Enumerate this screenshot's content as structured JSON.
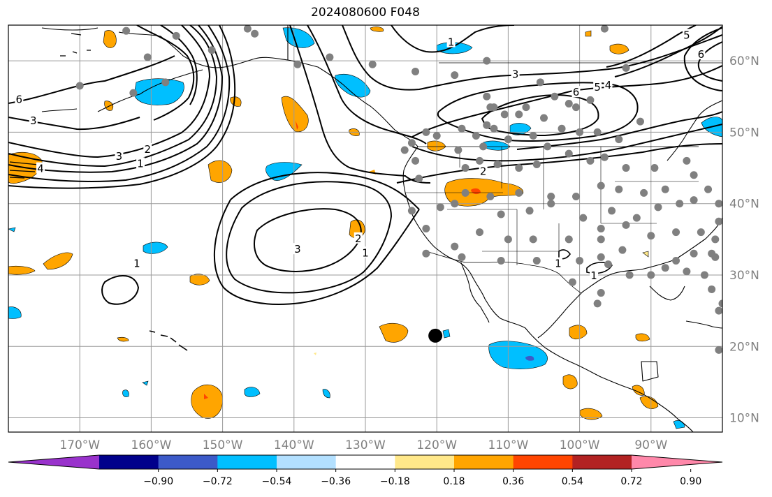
{
  "title": "2024080600 F048",
  "map": {
    "lon_range": [
      -180,
      -80
    ],
    "lat_range": [
      8,
      65
    ],
    "gridlines": true,
    "lon_ticks": [
      {
        "value": -170,
        "label": "170°W"
      },
      {
        "value": -160,
        "label": "160°W"
      },
      {
        "value": -150,
        "label": "150°W"
      },
      {
        "value": -140,
        "label": "140°W"
      },
      {
        "value": -130,
        "label": "130°W"
      },
      {
        "value": -120,
        "label": "120°W"
      },
      {
        "value": -110,
        "label": "110°W"
      },
      {
        "value": -100,
        "label": "100°W"
      },
      {
        "value": -90,
        "label": "90°W"
      }
    ],
    "lat_ticks": [
      {
        "value": 10,
        "label": "10°N"
      },
      {
        "value": 20,
        "label": "20°N"
      },
      {
        "value": 30,
        "label": "30°N"
      },
      {
        "value": 40,
        "label": "40°N"
      },
      {
        "value": 50,
        "label": "50°N"
      },
      {
        "value": 60,
        "label": "60°N"
      }
    ],
    "contour_labels": [
      {
        "text": "1",
        "lon": -162,
        "lat": 31.5
      },
      {
        "text": "3",
        "lon": -139.5,
        "lat": 33.5
      },
      {
        "text": "2",
        "lon": -131,
        "lat": 35
      },
      {
        "text": "1",
        "lon": -130,
        "lat": 33
      },
      {
        "text": "4",
        "lon": -175.5,
        "lat": 44.8
      },
      {
        "text": "3",
        "lon": -164.5,
        "lat": 46.5
      },
      {
        "text": "2",
        "lon": -160.5,
        "lat": 47.5
      },
      {
        "text": "1",
        "lon": -161.5,
        "lat": 45.5
      },
      {
        "text": "6",
        "lon": -178.5,
        "lat": 54.5
      },
      {
        "text": "3",
        "lon": -176.5,
        "lat": 51.5
      },
      {
        "text": "1",
        "lon": -118,
        "lat": 62.5
      },
      {
        "text": "3",
        "lon": -109,
        "lat": 58
      },
      {
        "text": "5",
        "lon": -97.5,
        "lat": 56.2
      },
      {
        "text": "6",
        "lon": -100.5,
        "lat": 55.5
      },
      {
        "text": "4",
        "lon": -96,
        "lat": 56.5
      },
      {
        "text": "2",
        "lon": -113.5,
        "lat": 44.4
      },
      {
        "text": "1",
        "lon": -103,
        "lat": 31.5
      },
      {
        "text": "1",
        "lon": -98,
        "lat": 29.8
      },
      {
        "text": "5",
        "lon": -85,
        "lat": 63.5
      },
      {
        "text": "6",
        "lon": -83,
        "lat": 60.8
      }
    ],
    "stations": [
      [
        -163.5,
        64.2
      ],
      [
        -156.5,
        63.5
      ],
      [
        -146.5,
        64.5
      ],
      [
        -145.5,
        63.8
      ],
      [
        -160.5,
        60.5
      ],
      [
        -151.5,
        61.5
      ],
      [
        -158,
        57
      ],
      [
        -162.5,
        55.5
      ],
      [
        -170,
        56.5
      ],
      [
        -139.5,
        59.5
      ],
      [
        -135,
        60.5
      ],
      [
        -129,
        59.5
      ],
      [
        -123,
        58.5
      ],
      [
        -117.5,
        58
      ],
      [
        -113,
        60
      ],
      [
        -105.5,
        57
      ],
      [
        -103.5,
        55
      ],
      [
        -98.5,
        54.5
      ],
      [
        -96.5,
        64.5
      ],
      [
        -93.5,
        59
      ],
      [
        -113,
        55
      ],
      [
        -110.5,
        52.5
      ],
      [
        -112.5,
        53.5
      ],
      [
        -112,
        53.5
      ],
      [
        -108.5,
        52.5
      ],
      [
        -107.5,
        53.5
      ],
      [
        -105,
        52
      ],
      [
        -101.5,
        54
      ],
      [
        -100.5,
        53.5
      ],
      [
        -102.5,
        50.5
      ],
      [
        -100,
        50
      ],
      [
        -97.5,
        50
      ],
      [
        -94.5,
        49
      ],
      [
        -91.5,
        51.5
      ],
      [
        -104.5,
        48
      ],
      [
        -106.5,
        49.5
      ],
      [
        -110,
        49
      ],
      [
        -112,
        50.5
      ],
      [
        -114.5,
        49.5
      ],
      [
        -113,
        51
      ],
      [
        -116.5,
        50.5
      ],
      [
        -120,
        49.5
      ],
      [
        -121.5,
        50
      ],
      [
        -123.5,
        48.5
      ],
      [
        -124.5,
        47.5
      ],
      [
        -123,
        46
      ],
      [
        -122.5,
        43.5
      ],
      [
        -117,
        47.5
      ],
      [
        -113.5,
        48
      ],
      [
        -116,
        45
      ],
      [
        -114,
        46
      ],
      [
        -111.5,
        45.5
      ],
      [
        -108.5,
        45
      ],
      [
        -106,
        45.5
      ],
      [
        -101.5,
        47
      ],
      [
        -98.5,
        46
      ],
      [
        -96.5,
        46.5
      ],
      [
        -93.5,
        45
      ],
      [
        -89.5,
        45
      ],
      [
        -85,
        46
      ],
      [
        -84,
        44
      ],
      [
        -88,
        42
      ],
      [
        -91,
        41.5
      ],
      [
        -94.5,
        42
      ],
      [
        -97,
        42.5
      ],
      [
        -100.5,
        41
      ],
      [
        -104,
        41
      ],
      [
        -108.5,
        41.5
      ],
      [
        -112.5,
        41
      ],
      [
        -116,
        41.5
      ],
      [
        -119.5,
        39.5
      ],
      [
        -117.5,
        40
      ],
      [
        -111,
        38.5
      ],
      [
        -107,
        39
      ],
      [
        -104,
        40
      ],
      [
        -99.5,
        38
      ],
      [
        -95.5,
        39
      ],
      [
        -92,
        38
      ],
      [
        -89,
        39.5
      ],
      [
        -86,
        40
      ],
      [
        -84,
        40.5
      ],
      [
        -82,
        42
      ],
      [
        -80.5,
        40
      ],
      [
        -80.5,
        37.5
      ],
      [
        -83,
        36
      ],
      [
        -86.5,
        36
      ],
      [
        -90,
        35.5
      ],
      [
        -93.5,
        37
      ],
      [
        -97,
        36.5
      ],
      [
        -101.5,
        35
      ],
      [
        -106.5,
        35
      ],
      [
        -110,
        35
      ],
      [
        -114,
        36
      ],
      [
        -117.5,
        34
      ],
      [
        -121.5,
        36.5
      ],
      [
        -123.5,
        39
      ],
      [
        -97,
        35
      ],
      [
        -94,
        33.5
      ],
      [
        -97,
        32.5
      ],
      [
        -100,
        32
      ],
      [
        -106,
        32
      ],
      [
        -111,
        32
      ],
      [
        -116.5,
        32.5
      ],
      [
        -121.5,
        33
      ],
      [
        -96,
        31.5
      ],
      [
        -93,
        30
      ],
      [
        -90,
        30
      ],
      [
        -88,
        31
      ],
      [
        -85,
        30.5
      ],
      [
        -82.5,
        30
      ],
      [
        -81.5,
        28
      ],
      [
        -80.5,
        25
      ],
      [
        -80,
        26
      ],
      [
        -81.5,
        33
      ],
      [
        -84,
        33
      ],
      [
        -86.5,
        32
      ],
      [
        -81,
        35
      ],
      [
        -81,
        32.5
      ],
      [
        -101,
        29
      ],
      [
        -97,
        27.5
      ],
      [
        -97.5,
        26
      ],
      [
        -80.5,
        19.5
      ]
    ],
    "feature_marker": {
      "lon": -120.2,
      "lat": 21.5
    }
  },
  "colorbar": {
    "colors": [
      "#9932CC",
      "#00008B",
      "#3C5AC8",
      "#00BFFF",
      "#B3E0FF",
      "#FFFFFF",
      "#FFE88A",
      "#FFA500",
      "#FF4500",
      "#B22222",
      "#FF88AA"
    ],
    "tick_labels": [
      "−0.90",
      "−0.72",
      "−0.54",
      "−0.36",
      "−0.18",
      "0.18",
      "0.36",
      "0.54",
      "0.72",
      "0.90"
    ]
  }
}
